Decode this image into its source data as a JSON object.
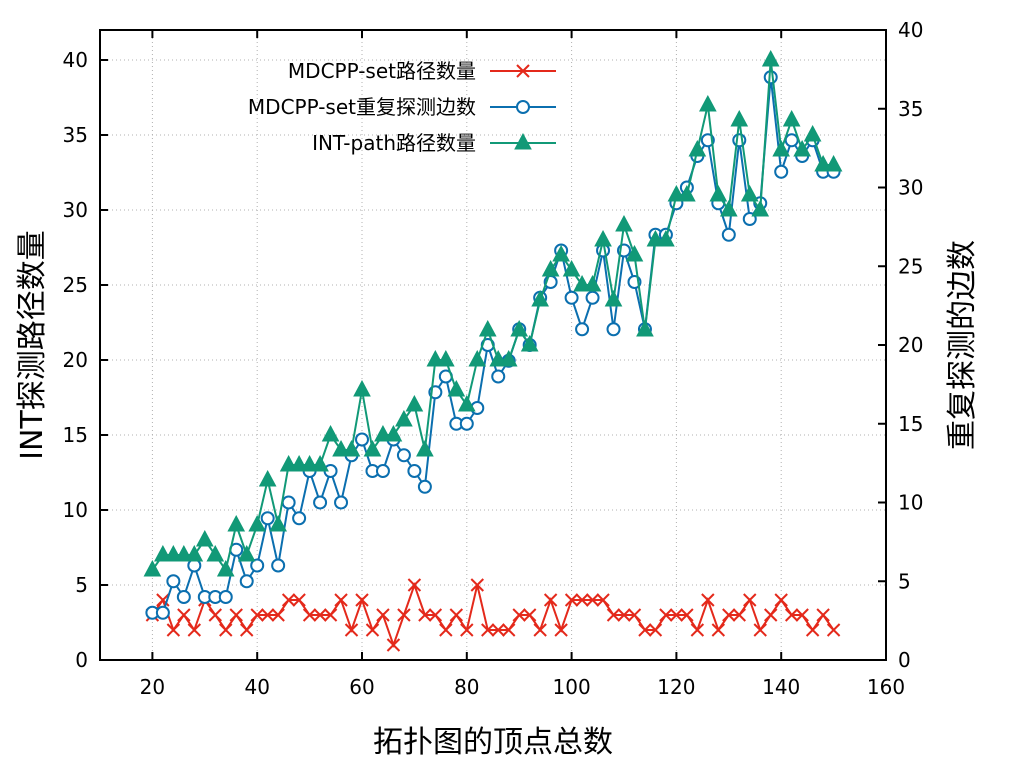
{
  "chart_data": {
    "type": "line",
    "xlabel": "拓扑图的顶点总数",
    "ylabel_left": "INT探测路径数量",
    "ylabel_right": "重复探测的边数",
    "xlim": [
      10,
      160
    ],
    "ylim_left": [
      0,
      42
    ],
    "ylim_right": [
      0,
      40
    ],
    "x_ticks": [
      20,
      40,
      60,
      80,
      100,
      120,
      140,
      160
    ],
    "y_left_ticks": [
      0,
      5,
      10,
      15,
      20,
      25,
      30,
      35,
      40
    ],
    "y_right_ticks": [
      0,
      5,
      10,
      15,
      20,
      25,
      30,
      35,
      40
    ],
    "grid": true,
    "legend_position": "top-left",
    "x": [
      20,
      22,
      24,
      26,
      28,
      30,
      32,
      34,
      36,
      38,
      40,
      42,
      44,
      46,
      48,
      50,
      52,
      54,
      56,
      58,
      60,
      62,
      64,
      66,
      68,
      70,
      72,
      74,
      76,
      78,
      80,
      82,
      84,
      86,
      88,
      90,
      92,
      94,
      96,
      98,
      100,
      102,
      104,
      106,
      108,
      110,
      112,
      114,
      116,
      118,
      120,
      122,
      124,
      126,
      128,
      130,
      132,
      134,
      136,
      138,
      140,
      142,
      144,
      146,
      148,
      150
    ],
    "series": [
      {
        "name": "MDCPP-set路径数量",
        "axis": "left",
        "color": "#e4291b",
        "marker": "x",
        "values": [
          3,
          4,
          2,
          3,
          2,
          4,
          3,
          2,
          3,
          2,
          3,
          3,
          3,
          4,
          4,
          3,
          3,
          3,
          4,
          2,
          4,
          2,
          3,
          1,
          3,
          5,
          3,
          3,
          2,
          3,
          2,
          5,
          2,
          2,
          2,
          3,
          3,
          2,
          4,
          2,
          4,
          4,
          4,
          4,
          3,
          3,
          3,
          2,
          2,
          3,
          3,
          3,
          2,
          4,
          2,
          3,
          3,
          4,
          2,
          3,
          4,
          3,
          3,
          2,
          3,
          2
        ]
      },
      {
        "name": "MDCPP-set重复探测边数",
        "axis": "right",
        "color": "#0b6faf",
        "marker": "circle",
        "values": [
          3,
          3,
          5,
          4,
          6,
          4,
          4,
          4,
          7,
          5,
          6,
          9,
          6,
          10,
          9,
          12,
          10,
          12,
          10,
          13,
          14,
          12,
          12,
          14,
          13,
          12,
          11,
          17,
          18,
          15,
          15,
          16,
          20,
          18,
          19,
          21,
          20,
          23,
          24,
          26,
          23,
          21,
          23,
          26,
          21,
          26,
          24,
          21,
          27,
          27,
          29,
          30,
          32,
          33,
          29,
          27,
          33,
          28,
          29,
          37,
          31,
          33,
          32,
          33,
          31,
          31
        ]
      },
      {
        "name": "INT-path路径数量",
        "axis": "left",
        "color": "#119977",
        "marker": "triangle",
        "values": [
          6,
          7,
          7,
          7,
          7,
          8,
          7,
          6,
          9,
          7,
          9,
          12,
          9,
          13,
          13,
          13,
          13,
          15,
          14,
          14,
          18,
          14,
          15,
          15,
          16,
          17,
          14,
          20,
          20,
          18,
          17,
          20,
          22,
          20,
          20,
          22,
          21,
          24,
          26,
          27,
          26,
          25,
          25,
          28,
          24,
          29,
          27,
          22,
          28,
          28,
          31,
          31,
          34,
          37,
          31,
          30,
          36,
          31,
          30,
          40,
          34,
          36,
          34,
          35,
          33,
          33
        ]
      }
    ]
  }
}
